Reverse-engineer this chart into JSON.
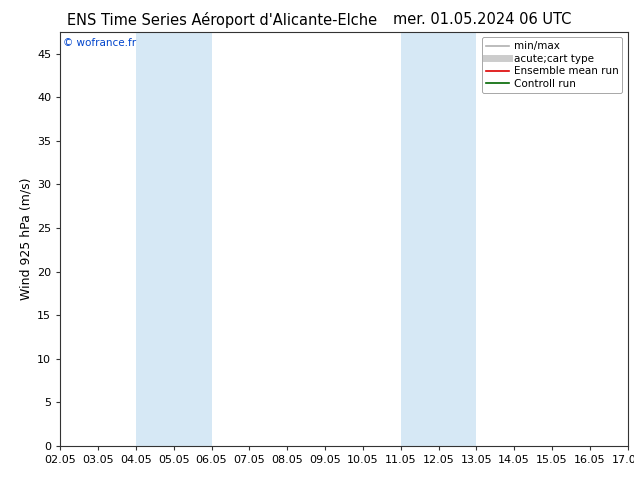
{
  "title_left": "ENS Time Series Aéroport d'Alicante-Elche",
  "title_right": "mer. 01.05.2024 06 UTC",
  "ylabel": "Wind 925 hPa (m/s)",
  "watermark": "© wofrance.fr",
  "x_tick_labels": [
    "02.05",
    "03.05",
    "04.05",
    "05.05",
    "06.05",
    "07.05",
    "08.05",
    "09.05",
    "10.05",
    "11.05",
    "12.05",
    "13.05",
    "14.05",
    "15.05",
    "16.05",
    "17.05"
  ],
  "x_ticks": [
    0,
    1,
    2,
    3,
    4,
    5,
    6,
    7,
    8,
    9,
    10,
    11,
    12,
    13,
    14,
    15
  ],
  "ylim": [
    0,
    47.5
  ],
  "yticks": [
    0,
    5,
    10,
    15,
    20,
    25,
    30,
    35,
    40,
    45
  ],
  "bg_color": "#ffffff",
  "plot_bg_color": "#ffffff",
  "shaded_bands": [
    {
      "x_start": 2,
      "x_end": 4,
      "color": "#d6e8f5"
    },
    {
      "x_start": 9,
      "x_end": 11,
      "color": "#d6e8f5"
    }
  ],
  "legend_entries": [
    {
      "label": "min/max",
      "color": "#b0b0b0",
      "lw": 1.2
    },
    {
      "label": "acute;cart type",
      "color": "#cccccc",
      "lw": 5
    },
    {
      "label": "Ensemble mean run",
      "color": "#dd0000",
      "lw": 1.2
    },
    {
      "label": "Controll run",
      "color": "#006600",
      "lw": 1.2
    }
  ],
  "title_fontsize": 10.5,
  "ylabel_fontsize": 9,
  "tick_fontsize": 8,
  "legend_fontsize": 7.5,
  "watermark_color": "#0044cc",
  "spine_color": "#333333"
}
